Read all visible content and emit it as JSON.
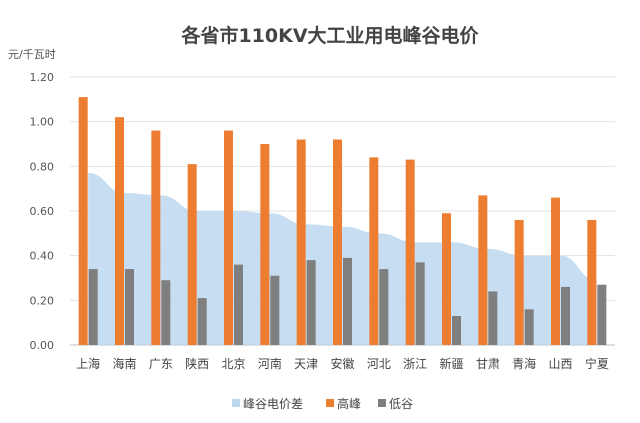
{
  "chart_data": {
    "type": "bar",
    "title": "各省市110KV大工业用电峰谷电价",
    "ylabel": "元/千瓦时",
    "ylim": [
      0,
      1.2
    ],
    "yticks": [
      "0.00",
      "0.20",
      "0.40",
      "0.60",
      "0.80",
      "1.00",
      "1.20"
    ],
    "grid": true,
    "legend_position": "bottom",
    "categories": [
      "上海",
      "海南",
      "广东",
      "陕西",
      "北京",
      "河南",
      "天津",
      "安徽",
      "河北",
      "浙江",
      "新疆",
      "甘肃",
      "青海",
      "山西",
      "宁夏"
    ],
    "series": [
      {
        "name": "峰谷电价差",
        "kind": "area",
        "color": "#bdd7ee",
        "values": [
          0.77,
          0.68,
          0.67,
          0.6,
          0.6,
          0.59,
          0.54,
          0.53,
          0.5,
          0.46,
          0.46,
          0.43,
          0.4,
          0.4,
          0.29
        ]
      },
      {
        "name": "高峰",
        "kind": "bar",
        "color": "#ed7d31",
        "values": [
          1.11,
          1.02,
          0.96,
          0.81,
          0.96,
          0.9,
          0.92,
          0.92,
          0.84,
          0.83,
          0.59,
          0.67,
          0.56,
          0.66,
          0.56
        ]
      },
      {
        "name": "低谷",
        "kind": "bar",
        "color": "#7f7f7f",
        "values": [
          0.34,
          0.34,
          0.29,
          0.21,
          0.36,
          0.31,
          0.38,
          0.39,
          0.34,
          0.37,
          0.13,
          0.24,
          0.16,
          0.26,
          0.27
        ]
      }
    ]
  }
}
